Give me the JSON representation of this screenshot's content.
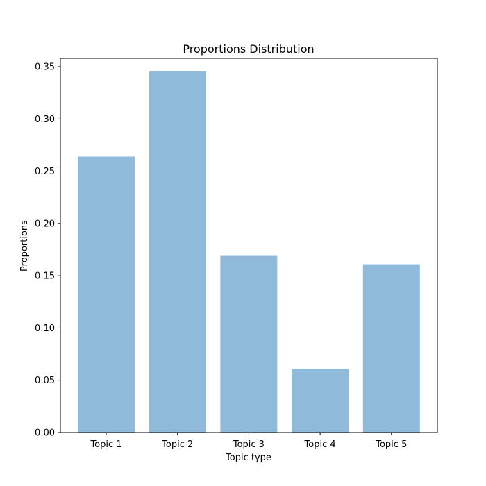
{
  "chart_data": {
    "type": "bar",
    "title": "Proportions Distribution",
    "xlabel": "Topic type",
    "ylabel": "Proportions",
    "categories": [
      "Topic 1",
      "Topic 2",
      "Topic 3",
      "Topic 4",
      "Topic 5"
    ],
    "values": [
      0.264,
      0.346,
      0.169,
      0.061,
      0.161
    ],
    "ylim": [
      0,
      0.35
    ],
    "yticks": [
      "0.00",
      "0.05",
      "0.10",
      "0.15",
      "0.20",
      "0.25",
      "0.30",
      "0.35"
    ],
    "bar_color": "#8fbad9",
    "grid": false,
    "legend": "none"
  }
}
